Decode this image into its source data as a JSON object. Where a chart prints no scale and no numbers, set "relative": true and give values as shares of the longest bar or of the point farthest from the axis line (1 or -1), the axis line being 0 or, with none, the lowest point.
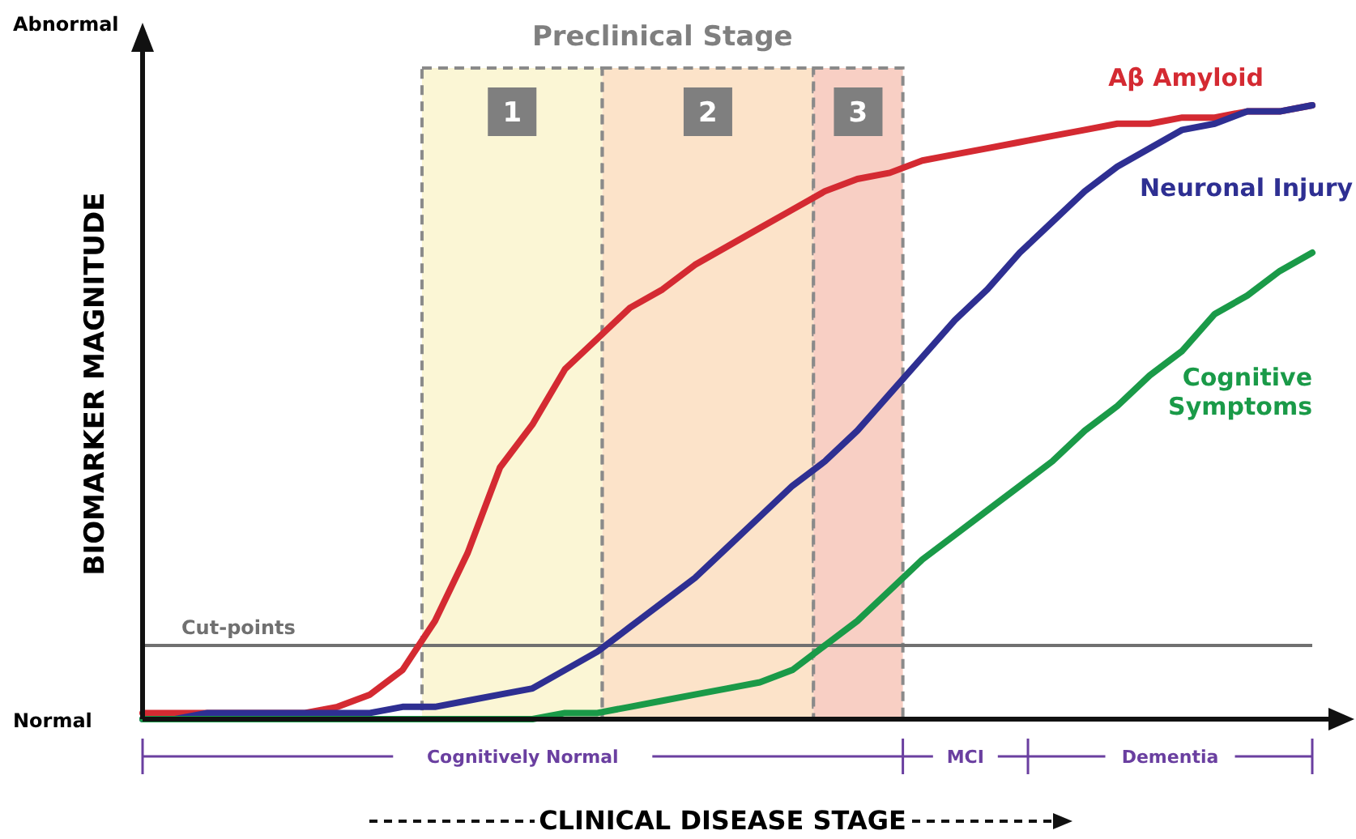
{
  "chart_data": {
    "type": "line",
    "relative": true,
    "xlabel": "CLINICAL DISEASE STAGE",
    "ylabel": "BIOMARKER MAGNITUDE",
    "categories": [
      null,
      null,
      null,
      null,
      null,
      null,
      null,
      null,
      null,
      null,
      null,
      null,
      null,
      null,
      null,
      null,
      null,
      null,
      null,
      null,
      null,
      null,
      null,
      null,
      null,
      null,
      null,
      null,
      null,
      null,
      null,
      null,
      null,
      null,
      null,
      null,
      null
    ],
    "series": [
      {
        "name": "Aβ Amyloid",
        "color": "#d42a32",
        "values": [
          0.01,
          0.01,
          0.01,
          0.01,
          0.01,
          0.01,
          0.02,
          0.04,
          0.08,
          0.16,
          0.27,
          0.41,
          0.48,
          0.57,
          0.62,
          0.67,
          0.7,
          0.74,
          0.77,
          0.8,
          0.83,
          0.86,
          0.88,
          0.89,
          0.91,
          0.92,
          0.93,
          0.94,
          0.95,
          0.96,
          0.97,
          0.97,
          0.98,
          0.98,
          0.99,
          0.99,
          1
        ]
      },
      {
        "name": "Neuronal Injury",
        "color": "#2e2f92",
        "values": [
          0,
          0,
          0.01,
          0.01,
          0.01,
          0.01,
          0.01,
          0.01,
          0.02,
          0.02,
          0.03,
          0.04,
          0.05,
          0.08,
          0.11,
          0.15,
          0.19,
          0.23,
          0.28,
          0.33,
          0.38,
          0.42,
          0.47,
          0.53,
          0.59,
          0.65,
          0.7,
          0.76,
          0.81,
          0.86,
          0.9,
          0.93,
          0.96,
          0.97,
          0.99,
          0.99,
          1
        ]
      },
      {
        "name": "Cognitive Symptoms",
        "color": "#1a9a48",
        "values": [
          0,
          0,
          0,
          0,
          0,
          0,
          0,
          0,
          0,
          0,
          0,
          0,
          0,
          0.01,
          0.01,
          0.02,
          0.03,
          0.04,
          0.05,
          0.06,
          0.08,
          0.12,
          0.16,
          0.21,
          0.26,
          0.3,
          0.34,
          0.38,
          0.42,
          0.47,
          0.51,
          0.56,
          0.6,
          0.66,
          0.69,
          0.73,
          0.76
        ]
      }
    ],
    "ref_lines": [
      {
        "axis": "y",
        "value": 0.12,
        "label": "Cut-points",
        "color": "#707070"
      }
    ],
    "annotations": [
      "Preclinical Stage",
      "1",
      "2",
      "3",
      "Abnormal",
      "Normal",
      "Cognitively Normal",
      "MCI",
      "Dementia"
    ]
  }
}
